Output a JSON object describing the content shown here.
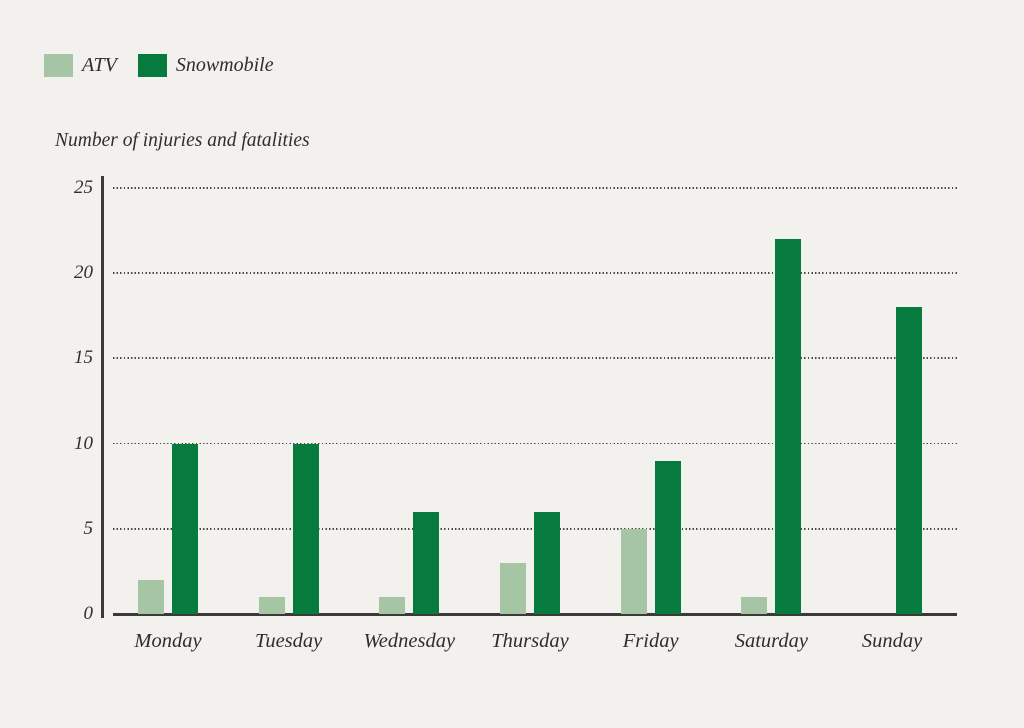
{
  "background": "#f2f1ee",
  "legend": {
    "items": [
      {
        "label": "ATV",
        "color": "#a6c5a4"
      },
      {
        "label": "Snowmobile",
        "color": "#077a3e"
      }
    ]
  },
  "chart_data": {
    "type": "bar",
    "title": "Number of injuries and fatalities",
    "categories": [
      "Monday",
      "Tuesday",
      "Wednesday",
      "Thursday",
      "Friday",
      "Saturday",
      "Sunday"
    ],
    "series": [
      {
        "name": "ATV",
        "color": "#a6c5a4",
        "values": [
          2,
          1,
          1,
          3,
          5,
          1,
          0
        ]
      },
      {
        "name": "Snowmobile",
        "color": "#077a3e",
        "values": [
          10,
          10,
          6,
          6,
          9,
          22,
          18
        ]
      }
    ],
    "ylabel": "Number of injuries and fatalities",
    "xlabel": "",
    "ylim": [
      0,
      25
    ],
    "yticks": [
      0,
      5,
      10,
      15,
      20,
      25
    ],
    "grid": "horizontal-dotted",
    "legend_position": "top-left",
    "colors": {
      "grid": "#4b4a46",
      "axis": "#3b3a37",
      "text": "#2f2e2c"
    }
  }
}
